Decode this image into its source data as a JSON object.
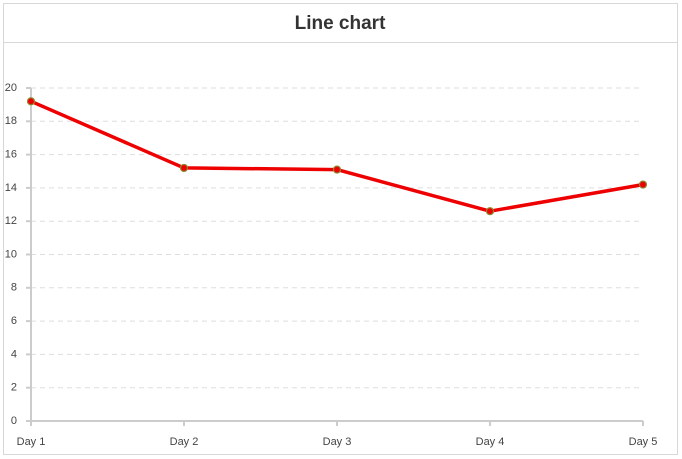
{
  "chart_data": {
    "type": "line",
    "title": "Line chart",
    "categories": [
      "Day 1",
      "Day 2",
      "Day 3",
      "Day 4",
      "Day 5"
    ],
    "series": [
      {
        "color": "#ee0000",
        "values": [
          19.2,
          15.2,
          15.1,
          12.6,
          14.2
        ]
      }
    ],
    "ylim": [
      0,
      20
    ],
    "yticks": [
      0,
      2,
      4,
      6,
      8,
      10,
      12,
      14,
      16,
      18,
      20
    ],
    "grid": true
  }
}
